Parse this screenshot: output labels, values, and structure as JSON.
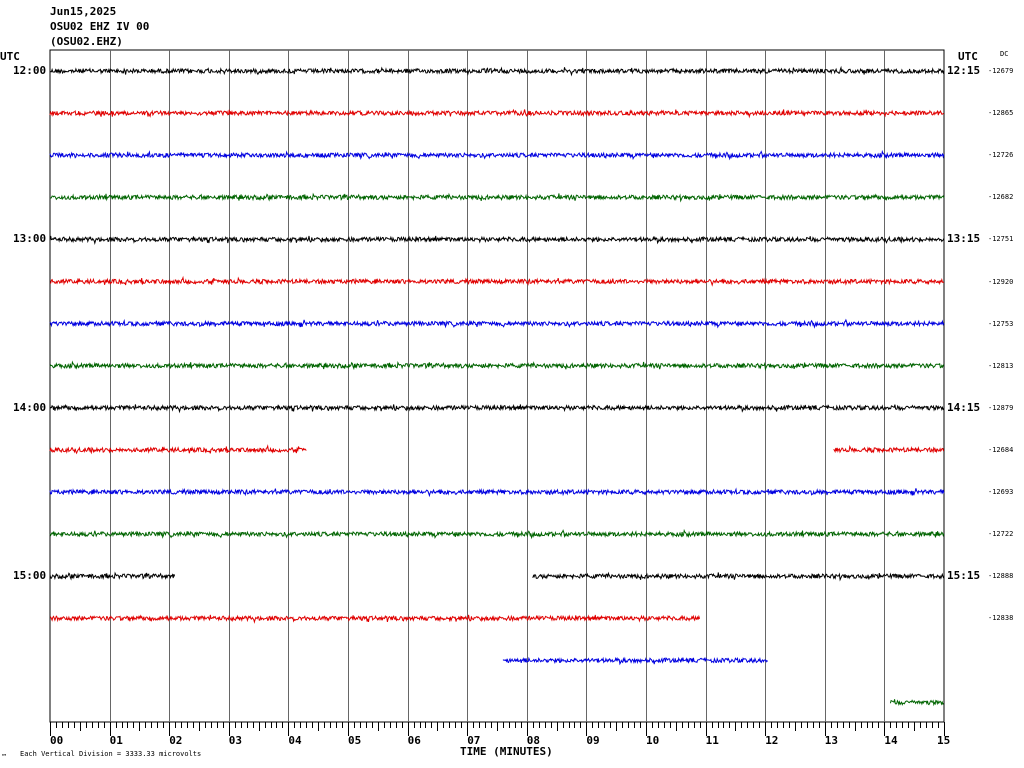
{
  "header": {
    "date": "Jun15,2025",
    "station": "OSU02 EHZ IV 00",
    "code": "(OSU02.EHZ)"
  },
  "left_zone_label": "UTC",
  "right_zone_label": "UTC",
  "dc_header": "DC",
  "footer_note": "Each Vertical Division = 3333.33 microvolts",
  "footer_mark": "™",
  "colors": [
    "#000000",
    "#e00000",
    "#0000e0",
    "#006400"
  ],
  "chart_data": {
    "type": "line",
    "xlabel": "TIME (MINUTES)",
    "xlim": [
      0,
      15
    ],
    "x_ticks": [
      "00",
      "01",
      "02",
      "03",
      "04",
      "05",
      "06",
      "07",
      "08",
      "09",
      "10",
      "11",
      "12",
      "13",
      "14",
      "15"
    ],
    "left_hour_labels": [
      "12:00",
      "13:00",
      "14:00",
      "15:00"
    ],
    "right_hour_labels": [
      "12:15",
      "13:15",
      "14:15",
      "15:15"
    ],
    "dc_values": [
      "-12679",
      "-12865",
      "-12726",
      "-12682",
      "-12751",
      "-12920",
      "-12753",
      "-12813",
      "-12879",
      "-12684",
      "-12693",
      "-12722",
      "-12888",
      "-12838"
    ],
    "traces": [
      {
        "row": 0,
        "segments": [
          [
            0,
            15
          ]
        ]
      },
      {
        "row": 1,
        "segments": [
          [
            0,
            15
          ]
        ]
      },
      {
        "row": 2,
        "segments": [
          [
            0,
            15
          ]
        ]
      },
      {
        "row": 3,
        "segments": [
          [
            0,
            15
          ]
        ]
      },
      {
        "row": 4,
        "segments": [
          [
            0,
            15
          ]
        ]
      },
      {
        "row": 5,
        "segments": [
          [
            0,
            15
          ]
        ]
      },
      {
        "row": 6,
        "segments": [
          [
            0,
            15
          ]
        ]
      },
      {
        "row": 7,
        "segments": [
          [
            0,
            15
          ]
        ]
      },
      {
        "row": 8,
        "segments": [
          [
            0,
            15
          ]
        ]
      },
      {
        "row": 9,
        "segments": [
          [
            0,
            4.3
          ],
          [
            13.15,
            15
          ]
        ]
      },
      {
        "row": 10,
        "segments": [
          [
            0,
            15
          ]
        ]
      },
      {
        "row": 11,
        "segments": [
          [
            0,
            15
          ]
        ]
      },
      {
        "row": 12,
        "segments": [
          [
            0,
            2.1
          ],
          [
            8.1,
            15
          ]
        ]
      },
      {
        "row": 13,
        "segments": [
          [
            0,
            10.9
          ]
        ]
      },
      {
        "row": 14,
        "segments": [
          [
            7.6,
            12.05
          ]
        ]
      },
      {
        "row": 15,
        "segments": [
          [
            14.1,
            15
          ]
        ]
      }
    ]
  }
}
